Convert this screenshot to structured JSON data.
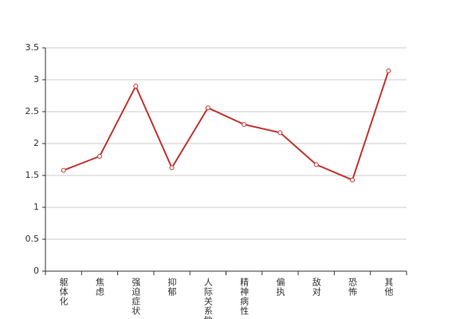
{
  "chart_data": {
    "type": "line",
    "categories": [
      "躯体化",
      "焦虑",
      "强迫症状",
      "抑郁",
      "人际关系敏感",
      "精神病性",
      "偏执",
      "敌对",
      "恐怖",
      "其他"
    ],
    "series": [
      {
        "color": "#c23531",
        "values": [
          1.58,
          1.8,
          2.9,
          1.62,
          2.56,
          2.3,
          2.17,
          1.67,
          1.43,
          3.14
        ]
      }
    ],
    "ylim": [
      0,
      3.5
    ],
    "yticks": [
      0,
      0.5,
      1,
      1.5,
      2,
      2.5,
      3,
      3.5
    ],
    "grid": true
  }
}
